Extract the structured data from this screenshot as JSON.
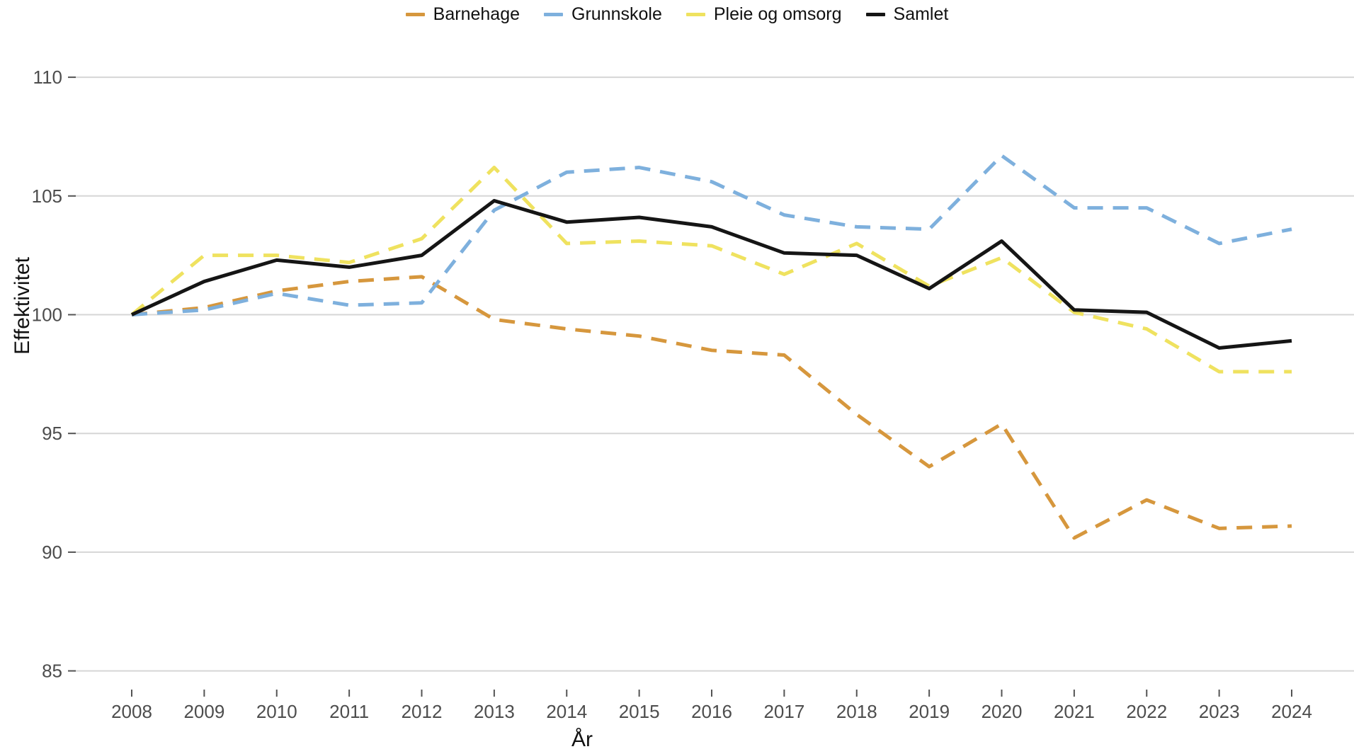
{
  "legend": [
    {
      "label": "Barnehage",
      "color": "#D6973D",
      "dashed": true
    },
    {
      "label": "Grunnskole",
      "color": "#7EB0DD",
      "dashed": true
    },
    {
      "label": "Pleie og omsorg",
      "color": "#EFE25F",
      "dashed": true
    },
    {
      "label": "Samlet",
      "color": "#151515",
      "dashed": false
    }
  ],
  "chart_data": {
    "type": "line",
    "title": "",
    "xlabel": "År",
    "ylabel": "Effektivitet",
    "x": [
      "2008",
      "2009",
      "2010",
      "2011",
      "2012",
      "2013",
      "2014",
      "2015",
      "2016",
      "2017",
      "2018",
      "2019",
      "2020",
      "2021",
      "2022",
      "2023",
      "2024"
    ],
    "yticks": [
      85,
      90,
      95,
      100,
      105,
      110
    ],
    "ylim": [
      85,
      110
    ],
    "grid": "horizontal-only",
    "legend_position": "top-center",
    "series": [
      {
        "name": "Barnehage",
        "color": "#D6973D",
        "style": "dashed",
        "values": [
          100,
          100.3,
          101,
          101.4,
          101.6,
          99.8,
          99.4,
          99.1,
          98.5,
          98.3,
          95.8,
          93.6,
          95.4,
          90.6,
          92.2,
          91,
          91.1
        ]
      },
      {
        "name": "Grunnskole",
        "color": "#7EB0DD",
        "style": "dashed",
        "values": [
          100,
          100.2,
          100.9,
          100.4,
          100.5,
          104.4,
          106,
          106.2,
          105.6,
          104.2,
          103.7,
          103.6,
          106.7,
          104.5,
          104.5,
          103,
          103.6
        ]
      },
      {
        "name": "Pleie og omsorg",
        "color": "#EFE25F",
        "style": "dashed",
        "values": [
          100,
          102.5,
          102.5,
          102.2,
          103.2,
          106.2,
          103,
          103.1,
          102.9,
          101.7,
          103,
          101.2,
          102.4,
          100.1,
          99.4,
          97.6,
          97.6
        ]
      },
      {
        "name": "Samlet",
        "color": "#151515",
        "style": "solid",
        "values": [
          100,
          101.4,
          102.3,
          102,
          102.5,
          104.8,
          103.9,
          104.1,
          103.7,
          102.6,
          102.5,
          101.1,
          103.1,
          100.2,
          100.1,
          98.6,
          98.9
        ]
      }
    ]
  },
  "colors": {
    "background": "#FFFFFF",
    "gridline": "#D6D6D6",
    "tick_mark": "#545454",
    "tick_label": "#4D4D4D",
    "axis_title": "#111111"
  }
}
